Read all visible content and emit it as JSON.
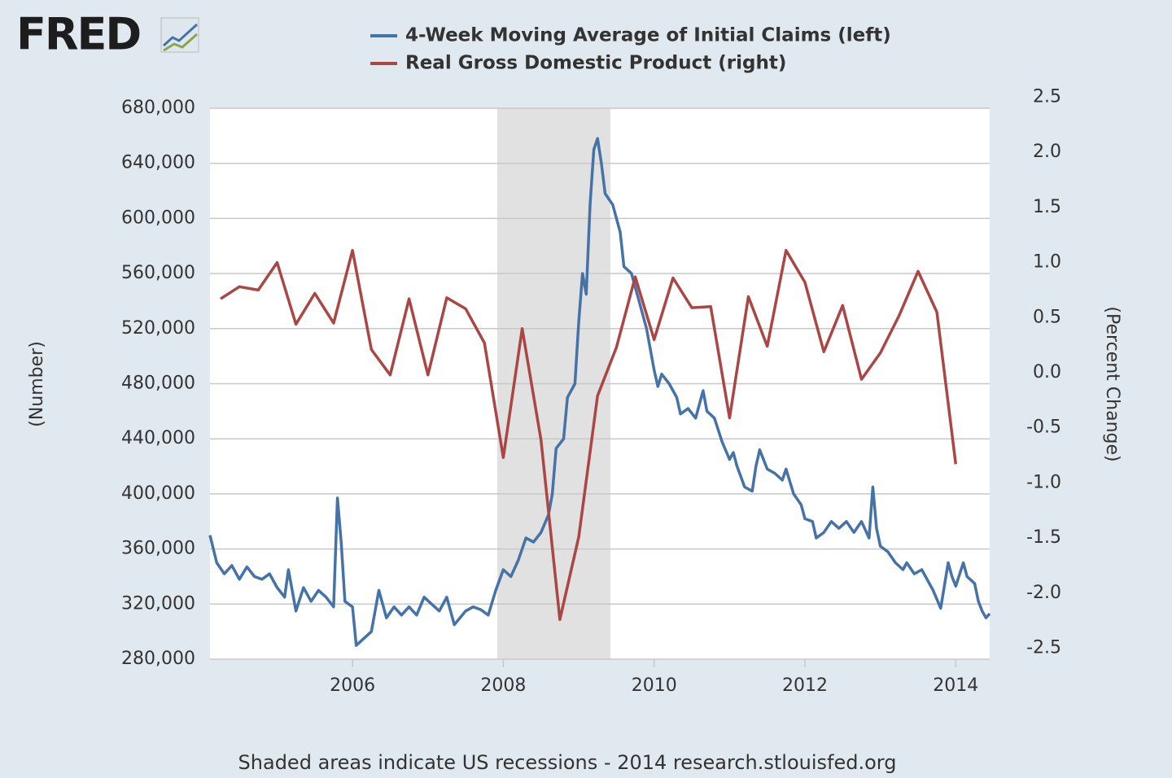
{
  "logo": "FRED",
  "footer": "Shaded areas indicate US recessions - 2014 research.stlouisfed.org",
  "chart_data": {
    "type": "line",
    "y_label": "(Number)",
    "y2_label": "(Percent Change)",
    "xlim": [
      2004.11,
      2014.45
    ],
    "xticks": [
      2006,
      2008,
      2010,
      2012,
      2014
    ],
    "ylim": [
      280000,
      680000
    ],
    "yticks": [
      {
        "value": 280000,
        "label": "280,000"
      },
      {
        "value": 320000,
        "label": "320,000"
      },
      {
        "value": 360000,
        "label": "360,000"
      },
      {
        "value": 400000,
        "label": "400,000"
      },
      {
        "value": 440000,
        "label": "440,000"
      },
      {
        "value": 480000,
        "label": "480,000"
      },
      {
        "value": 520000,
        "label": "520,000"
      },
      {
        "value": 560000,
        "label": "560,000"
      },
      {
        "value": 600000,
        "label": "600,000"
      },
      {
        "value": 640000,
        "label": "640,000"
      },
      {
        "value": 680000,
        "label": "680,000"
      }
    ],
    "y2lim": [
      -2.6,
      2.4
    ],
    "y2ticks": [
      -2.5,
      {
        "value": -2,
        "label": "-2.0"
      },
      -1.5,
      {
        "value": -1,
        "label": "-1.0"
      },
      -0.5,
      {
        "value": 0,
        "label": "0.0"
      },
      0.5,
      {
        "value": 1,
        "label": "1.0"
      },
      1.5,
      {
        "value": 2,
        "label": "2.0"
      },
      2.5
    ],
    "grid": true,
    "recessions": [
      [
        2007.92,
        2009.42
      ]
    ],
    "series": [
      {
        "name": "4-Week Moving Average of Initial Claims (left)",
        "color": "#4572a7",
        "axis": "y",
        "x": [
          2004.11,
          2004.2,
          2004.3,
          2004.4,
          2004.5,
          2004.6,
          2004.7,
          2004.8,
          2004.9,
          2005.0,
          2005.1,
          2005.15,
          2005.25,
          2005.35,
          2005.45,
          2005.55,
          2005.65,
          2005.75,
          2005.8,
          2005.85,
          2005.9,
          2006.0,
          2006.05,
          2006.15,
          2006.25,
          2006.35,
          2006.45,
          2006.55,
          2006.65,
          2006.75,
          2006.85,
          2006.95,
          2007.05,
          2007.15,
          2007.25,
          2007.35,
          2007.5,
          2007.6,
          2007.7,
          2007.8,
          2007.9,
          2008.0,
          2008.1,
          2008.2,
          2008.3,
          2008.4,
          2008.5,
          2008.6,
          2008.65,
          2008.7,
          2008.8,
          2008.85,
          2008.95,
          2009.0,
          2009.05,
          2009.1,
          2009.15,
          2009.2,
          2009.25,
          2009.3,
          2009.35,
          2009.45,
          2009.55,
          2009.6,
          2009.7,
          2009.8,
          2009.9,
          2010.0,
          2010.05,
          2010.1,
          2010.2,
          2010.3,
          2010.35,
          2010.45,
          2010.55,
          2010.65,
          2010.7,
          2010.8,
          2010.9,
          2011.0,
          2011.05,
          2011.1,
          2011.2,
          2011.3,
          2011.35,
          2011.4,
          2011.5,
          2011.6,
          2011.7,
          2011.75,
          2011.85,
          2011.95,
          2012.0,
          2012.1,
          2012.15,
          2012.25,
          2012.35,
          2012.45,
          2012.55,
          2012.65,
          2012.75,
          2012.85,
          2012.9,
          2012.95,
          2013.0,
          2013.1,
          2013.2,
          2013.3,
          2013.35,
          2013.45,
          2013.55,
          2013.6,
          2013.7,
          2013.8,
          2013.9,
          2013.95,
          2014.0,
          2014.1,
          2014.15,
          2014.25,
          2014.3,
          2014.35,
          2014.4,
          2014.45
        ],
        "values": [
          370000,
          350000,
          342000,
          348000,
          338000,
          347000,
          340000,
          338000,
          342000,
          332000,
          325000,
          345000,
          315000,
          332000,
          322000,
          330000,
          325000,
          318000,
          397000,
          365000,
          322000,
          318000,
          290000,
          295000,
          300000,
          330000,
          310000,
          318000,
          312000,
          318000,
          312000,
          325000,
          320000,
          315000,
          325000,
          305000,
          315000,
          318000,
          316000,
          312000,
          330000,
          345000,
          340000,
          352000,
          368000,
          365000,
          372000,
          385000,
          400000,
          433000,
          440000,
          470000,
          480000,
          525000,
          560000,
          545000,
          610000,
          650000,
          658000,
          640000,
          618000,
          610000,
          590000,
          565000,
          560000,
          540000,
          520000,
          490000,
          478000,
          487000,
          480000,
          470000,
          458000,
          462000,
          455000,
          475000,
          460000,
          455000,
          438000,
          425000,
          430000,
          420000,
          405000,
          402000,
          420000,
          432000,
          418000,
          415000,
          410000,
          418000,
          400000,
          392000,
          382000,
          380000,
          368000,
          372000,
          380000,
          375000,
          380000,
          372000,
          380000,
          368000,
          405000,
          375000,
          362000,
          358000,
          350000,
          345000,
          350000,
          342000,
          345000,
          340000,
          330000,
          317000,
          350000,
          340000,
          333000,
          350000,
          340000,
          335000,
          322000,
          315000,
          310000,
          313000
        ]
      },
      {
        "name": "Real Gross Domestic Product (right)",
        "color": "#aa4643",
        "axis": "y2",
        "x": [
          2004.25,
          2004.5,
          2004.75,
          2005.0,
          2005.25,
          2005.5,
          2005.75,
          2006.0,
          2006.25,
          2006.5,
          2006.75,
          2007.0,
          2007.25,
          2007.5,
          2007.75,
          2008.0,
          2008.25,
          2008.5,
          2008.75,
          2009.0,
          2009.25,
          2009.5,
          2009.75,
          2010.0,
          2010.25,
          2010.5,
          2010.75,
          2011.0,
          2011.25,
          2011.5,
          2011.75,
          2012.0,
          2012.25,
          2012.5,
          2012.75,
          2013.0,
          2013.25,
          2013.5,
          2013.75,
          2014.0
        ],
        "values": [
          0.67,
          0.78,
          0.75,
          1.0,
          0.44,
          0.72,
          0.45,
          1.11,
          0.21,
          -0.02,
          0.67,
          -0.02,
          0.68,
          0.58,
          0.27,
          -0.77,
          0.4,
          -0.61,
          -2.24,
          -1.49,
          -0.21,
          0.23,
          0.87,
          0.3,
          0.86,
          0.59,
          0.6,
          -0.41,
          0.69,
          0.24,
          1.11,
          0.82,
          0.19,
          0.61,
          -0.06,
          0.18,
          0.52,
          0.92,
          0.55,
          -0.83
        ]
      }
    ]
  }
}
